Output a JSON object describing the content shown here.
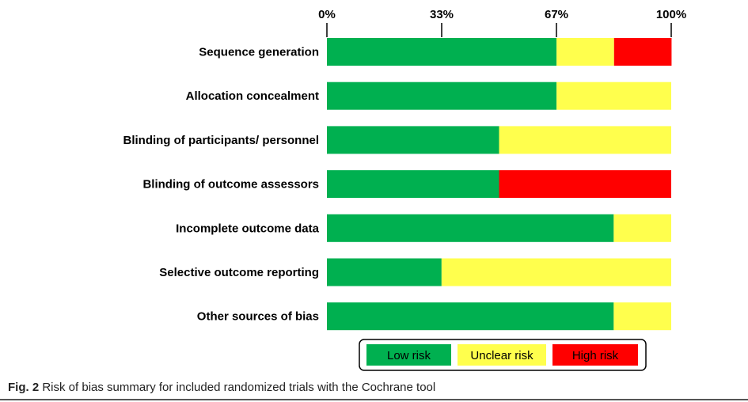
{
  "chart_data": {
    "type": "bar",
    "orientation": "horizontal",
    "stacked": true,
    "x_ticks": [
      "0%",
      "33%",
      "67%",
      "100%"
    ],
    "xlim": [
      0,
      100
    ],
    "categories": [
      "Sequence generation",
      "Allocation concealment",
      "Blinding of participants/ personnel",
      "Blinding of outcome assessors",
      "Incomplete outcome data",
      "Selective outcome reporting",
      "Other sources of bias"
    ],
    "series": [
      {
        "name": "Low risk",
        "color": "#00b050",
        "values": [
          66.7,
          66.7,
          50,
          50,
          83.3,
          33.3,
          83.3
        ]
      },
      {
        "name": "Unclear risk",
        "color": "#ffff4d",
        "values": [
          16.7,
          33.3,
          50,
          0,
          16.7,
          66.7,
          16.7
        ]
      },
      {
        "name": "High risk",
        "color": "#ff0000",
        "values": [
          16.7,
          0,
          0,
          50,
          0,
          0,
          0
        ]
      }
    ],
    "legend": [
      "Low risk",
      "Unclear risk",
      "High risk"
    ],
    "legend_position": "bottom"
  },
  "caption": {
    "label": "Fig. 2",
    "text": " Risk of bias summary for included randomized trials with the Cochrane tool"
  }
}
